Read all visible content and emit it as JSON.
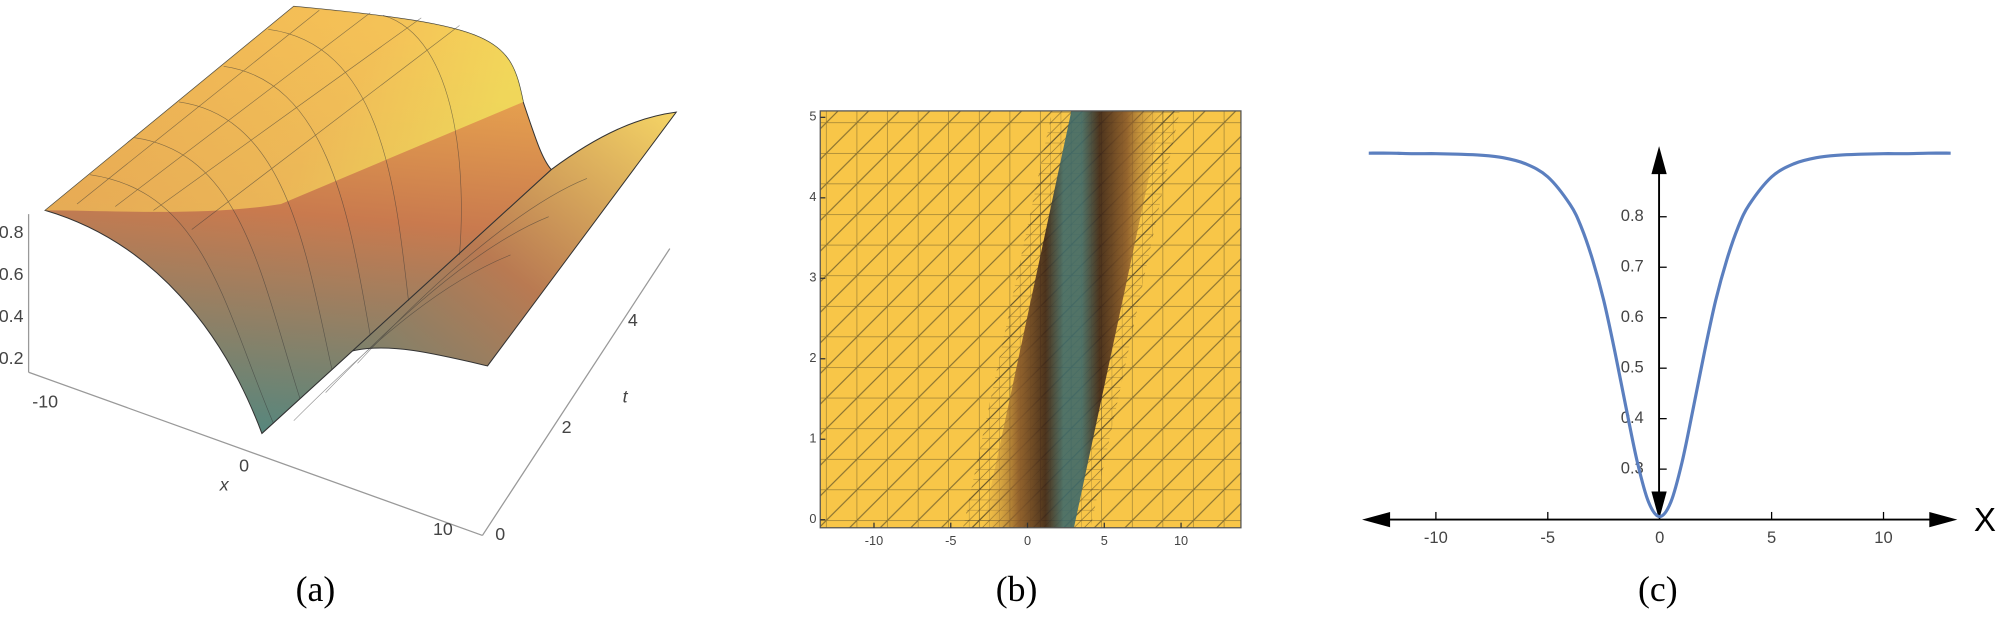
{
  "chart_data": [
    {
      "type": "surface",
      "caption": "(a)",
      "xlabel": "x",
      "ylabel": "t",
      "xticks": [
        -10,
        0,
        10
      ],
      "yticks": [
        0,
        2,
        4
      ],
      "zticks": [
        0.2,
        0.4,
        0.6,
        0.8
      ]
    },
    {
      "type": "density",
      "caption": "(b)",
      "xlim": [
        -13.5,
        13.9
      ],
      "ylim": [
        -0.1,
        5.08
      ],
      "xticks": [
        -10,
        -5,
        0,
        5,
        10
      ],
      "yticks": [
        0,
        1,
        2,
        3,
        4,
        5
      ]
    },
    {
      "type": "line",
      "caption": "(c)",
      "xlabel": "X",
      "xlim": [
        -13.3,
        13.3
      ],
      "ylim": [
        0.2,
        0.94
      ],
      "xticks": [
        -10,
        -5,
        0,
        5,
        10
      ],
      "yticks": [
        0.3,
        0.4,
        0.5,
        0.6,
        0.7,
        0.8
      ],
      "x": [
        -13,
        -12,
        -11,
        -10,
        -9,
        -8,
        -7,
        -6,
        -5,
        -4,
        -3.5,
        -3,
        -2.5,
        -2,
        -1.5,
        -1,
        -0.5,
        0,
        0.5,
        1,
        1.5,
        2,
        2.5,
        3,
        3.5,
        4,
        5,
        6,
        7,
        8,
        9,
        10,
        11,
        12,
        13
      ],
      "series": [
        {
          "color": "#5b7fbf",
          "values": [
            0.926,
            0.926,
            0.925,
            0.925,
            0.924,
            0.922,
            0.917,
            0.905,
            0.879,
            0.824,
            0.779,
            0.715,
            0.634,
            0.532,
            0.421,
            0.314,
            0.235,
            0.206,
            0.235,
            0.314,
            0.421,
            0.532,
            0.634,
            0.715,
            0.779,
            0.824,
            0.879,
            0.905,
            0.917,
            0.922,
            0.924,
            0.925,
            0.925,
            0.926,
            0.926
          ]
        }
      ]
    }
  ]
}
